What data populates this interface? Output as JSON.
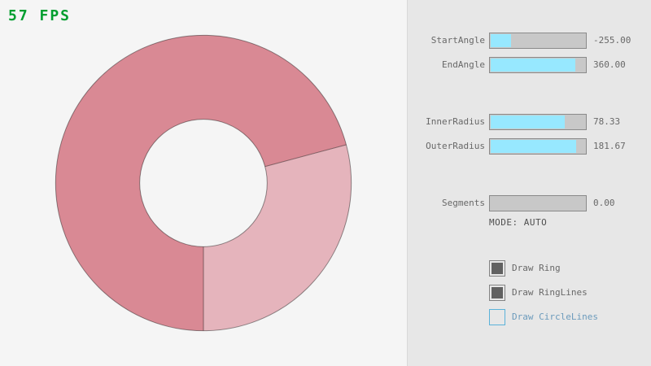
{
  "app": {
    "fps_label": "57 FPS"
  },
  "colors": {
    "canvas_bg": "#F5F5F5",
    "panel_bg": "#E7E7E7",
    "divider": "#D8D8D8",
    "fps": "#009E2F",
    "text": "#686868",
    "mode_text": "#4F4F4F",
    "slider_border": "#8A8A8A",
    "slider_track": "#C8C8C8",
    "slider_fill": "#97E8FF",
    "check_border": "#838383",
    "check_fill": "#616161",
    "focus_border": "#5BB2D9",
    "focus_text": "#6C9BBC",
    "ring_dark": "#D98994",
    "ring_light": "#E5B4BC",
    "ring_line": "rgba(0,0,0,0.42)"
  },
  "ring": {
    "start_angle": -255,
    "end_angle": 360,
    "inner_radius": 78.33,
    "outer_radius": 181.67
  },
  "sliders": [
    {
      "label": "StartAngle",
      "value": "-255.00",
      "fraction": 0.2167
    },
    {
      "label": "EndAngle",
      "value": "360.00",
      "fraction": 0.9
    },
    {
      "label": "InnerRadius",
      "value": "78.33",
      "fraction": 0.7833
    },
    {
      "label": "OuterRadius",
      "value": "181.67",
      "fraction": 0.9083
    },
    {
      "label": "Segments",
      "value": "0.00",
      "fraction": 0.0
    }
  ],
  "mode": {
    "text": "MODE: AUTO"
  },
  "checkboxes": [
    {
      "label": "Draw Ring",
      "checked": true,
      "focused": false
    },
    {
      "label": "Draw RingLines",
      "checked": true,
      "focused": false
    },
    {
      "label": "Draw CircleLines",
      "checked": false,
      "focused": true
    }
  ]
}
